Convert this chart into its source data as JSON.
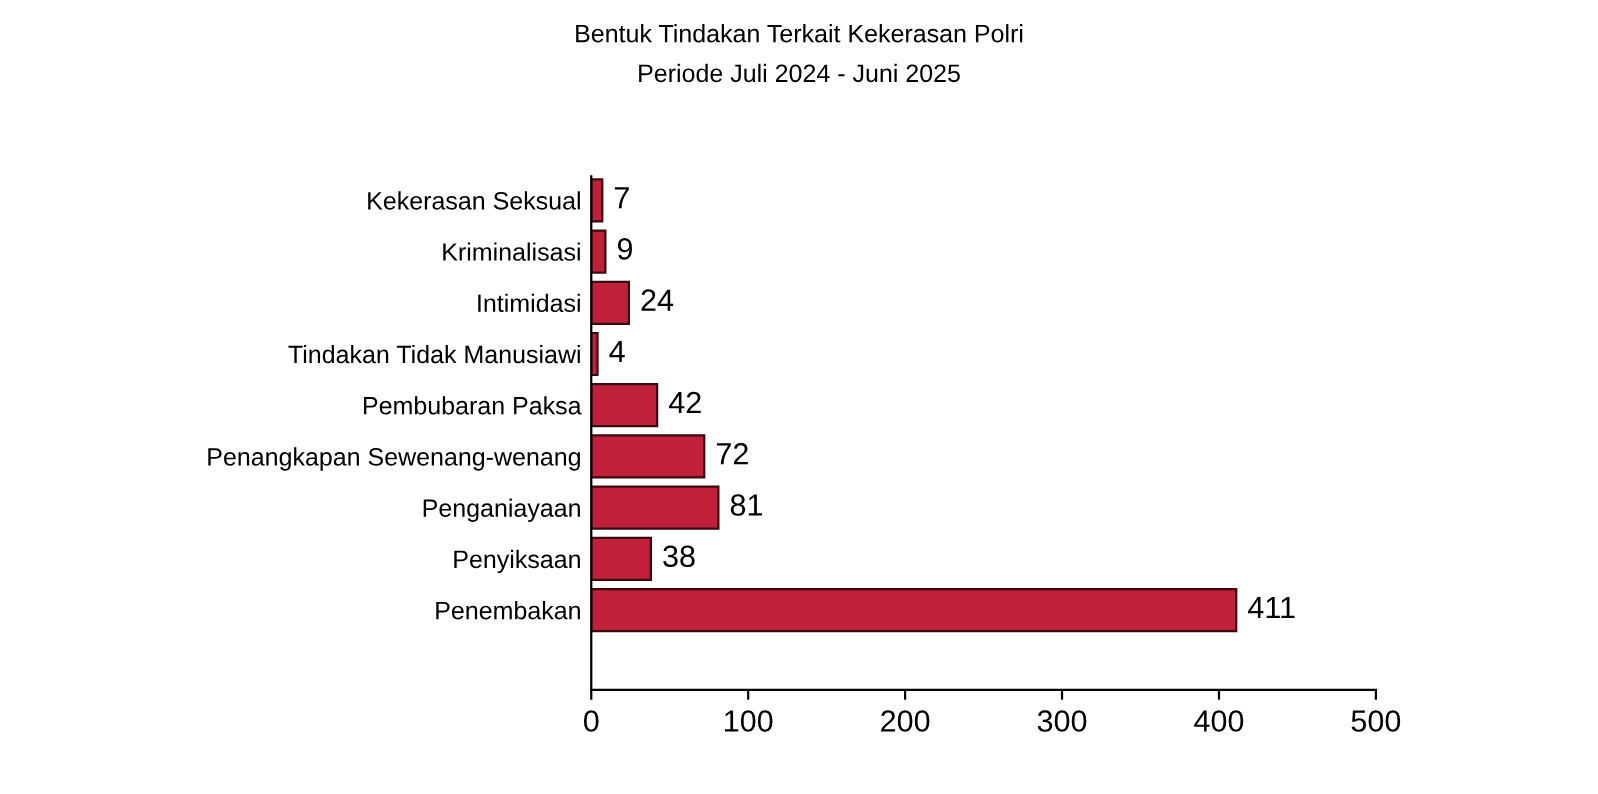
{
  "chart_data": {
    "type": "bar",
    "orientation": "horizontal",
    "title": "Bentuk Tindakan Terkait Kekerasan Polri",
    "subtitle": "Periode Juli 2024 - Juni 2025",
    "categories": [
      "Kekerasan Seksual",
      "Kriminalisasi",
      "Intimidasi",
      "Tindakan Tidak Manusiawi",
      "Pembubaran Paksa",
      "Penangkapan Sewenang-wenang",
      "Penganiayaan",
      "Penyiksaan",
      "Penembakan"
    ],
    "values": [
      7,
      9,
      24,
      4,
      42,
      72,
      81,
      38,
      411
    ],
    "color": "#c1203a",
    "xlim": [
      0,
      500
    ],
    "xticks": [
      0,
      100,
      200,
      300,
      400,
      500
    ],
    "data_labels": true,
    "grid": false,
    "legend": false
  }
}
